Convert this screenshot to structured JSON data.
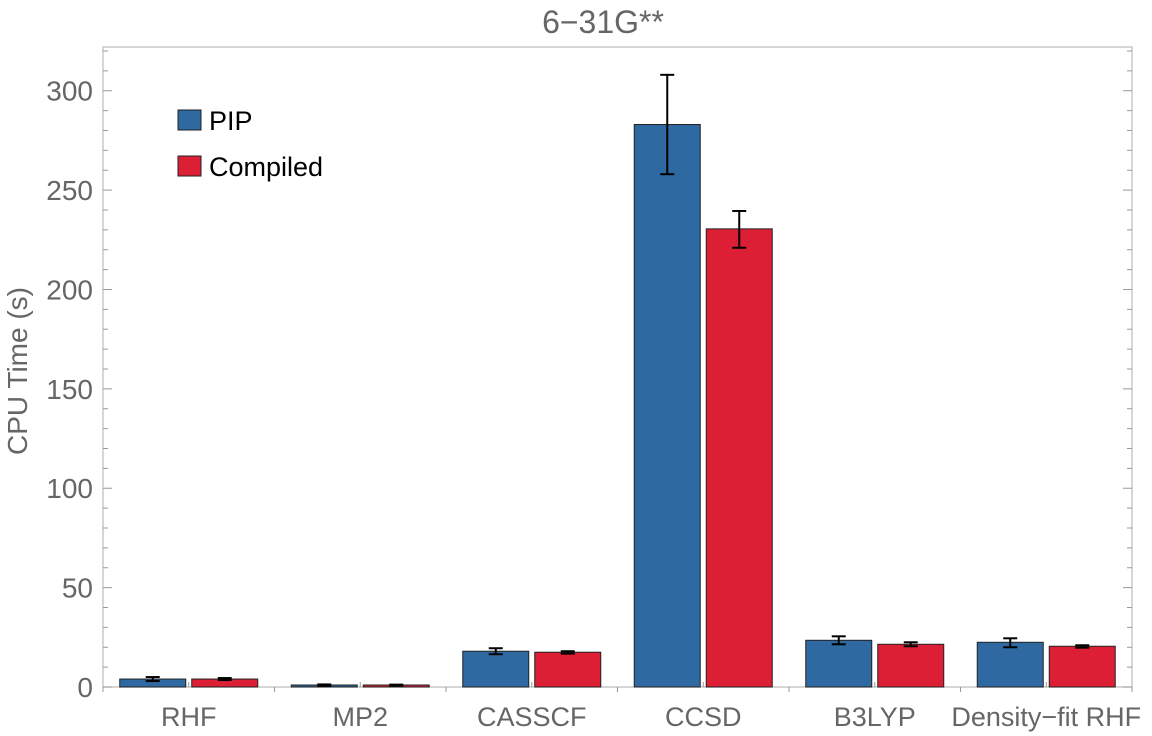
{
  "chart_data": {
    "type": "bar",
    "title": "6−31G**",
    "ylabel": "CPU Time (s)",
    "xlabel": "",
    "categories": [
      "RHF",
      "MP2",
      "CASSCF",
      "CCSD",
      "B3LYP",
      "Density−fit RHF"
    ],
    "series": [
      {
        "name": "PIP",
        "color": "#2e69a1",
        "values": [
          4.0,
          1.0,
          18.0,
          283.0,
          23.5,
          22.5
        ],
        "error_low": [
          3.0,
          0.6,
          16.5,
          258.0,
          21.5,
          20.0
        ],
        "error_high": [
          5.0,
          1.3,
          19.5,
          308.0,
          25.5,
          24.5
        ]
      },
      {
        "name": "Compiled",
        "color": "#dc1f35",
        "values": [
          4.0,
          1.0,
          17.5,
          230.5,
          21.5,
          20.5
        ],
        "error_low": [
          3.5,
          0.7,
          16.8,
          221.0,
          20.5,
          19.8
        ],
        "error_high": [
          4.5,
          1.2,
          18.0,
          239.5,
          22.5,
          21.0
        ]
      }
    ],
    "ylim": [
      0,
      322
    ],
    "yticks": [
      0,
      50,
      100,
      150,
      200,
      250,
      300
    ],
    "y_minor_step": 10,
    "grid": false,
    "legend_position": "top-left",
    "frame_color": "#bbbbbb",
    "error_bar_color": "#000000"
  }
}
